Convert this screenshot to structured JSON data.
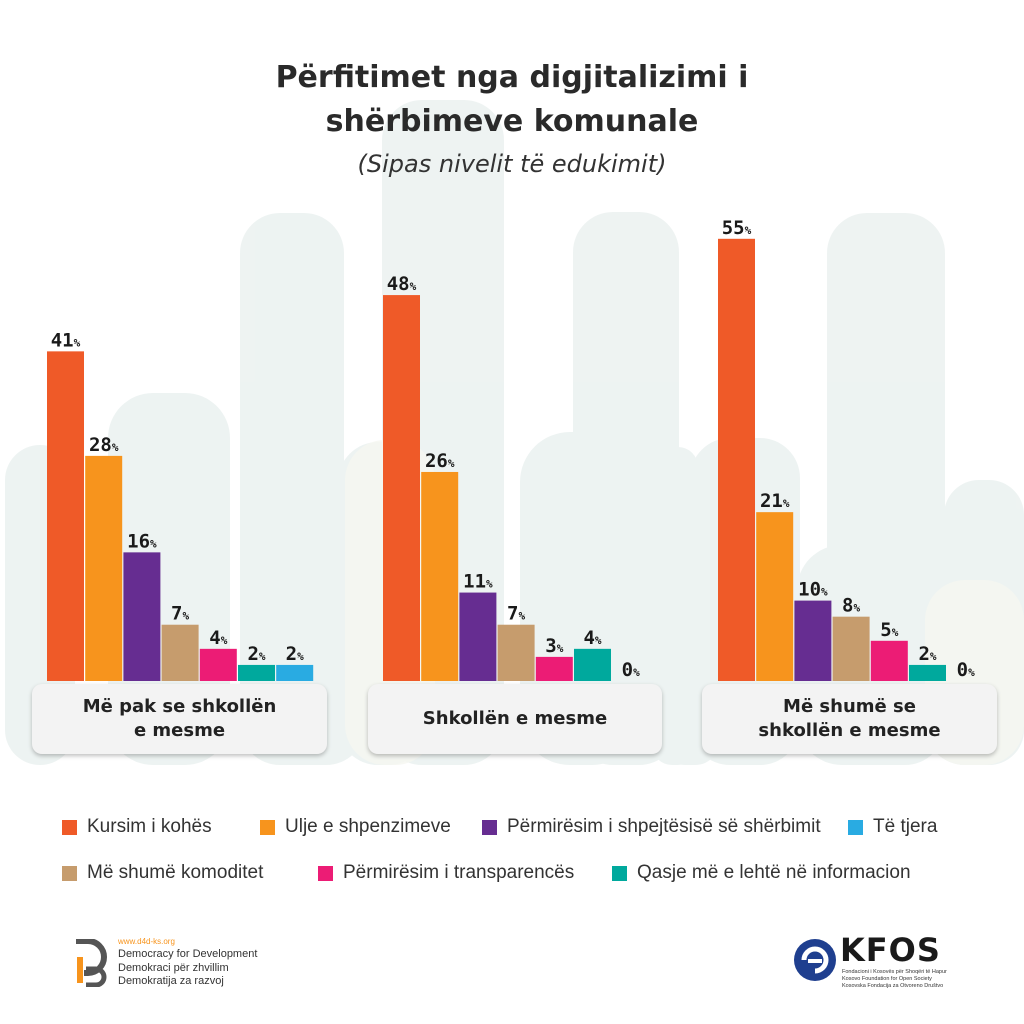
{
  "title_line1": "Përfitimet nga digjitalizimi i",
  "title_line2": "shërbimeve komunale",
  "subtitle": "(Sipas nivelit të edukimit)",
  "chart_data": {
    "type": "bar",
    "title": "Përfitimet nga digjitalizimi i shërbimeve komunale",
    "subtitle": "(Sipas nivelit të edukimit)",
    "categories": [
      "Më pak se shkollën e mesme",
      "Shkollën e mesme",
      "Më shumë se shkollën e mesme"
    ],
    "series": [
      {
        "name": "Kursim i kohës",
        "color": "#ef5a28",
        "values": [
          41,
          48,
          55
        ]
      },
      {
        "name": "Ulje e shpenzimeve",
        "color": "#f7941d",
        "values": [
          28,
          26,
          21
        ]
      },
      {
        "name": "Përmirësim i shpejtësisë së shërbimit",
        "color": "#662d91",
        "values": [
          16,
          11,
          10
        ]
      },
      {
        "name": "Më shumë komoditet",
        "color": "#c69c6d",
        "values": [
          7,
          7,
          8
        ]
      },
      {
        "name": "Përmirësim i transparencës",
        "color": "#ec1c75",
        "values": [
          4,
          3,
          5
        ]
      },
      {
        "name": "Qasje më e lehtë në informacion",
        "color": "#00a99d",
        "values": [
          2,
          4,
          2
        ]
      },
      {
        "name": "Të tjera",
        "color": "#29abe2",
        "values": [
          2,
          0,
          0
        ]
      }
    ],
    "value_suffix": "%",
    "legend_position": "bottom",
    "grid": false
  },
  "groups": [
    {
      "line1": "Më pak se shkollën",
      "line2": "e mesme"
    },
    {
      "line1": "Shkollën e mesme",
      "line2": ""
    },
    {
      "line1": "Më shumë se",
      "line2": "shkollën e mesme"
    }
  ],
  "legend": [
    {
      "label": "Kursim i kohës",
      "color": "#ef5a28"
    },
    {
      "label": "Ulje e shpenzimeve",
      "color": "#f7941d"
    },
    {
      "label": "Përmirësim i shpejtësisë së shërbimit",
      "color": "#662d91"
    },
    {
      "label": "Të tjera",
      "color": "#29abe2"
    },
    {
      "label": "Më shumë komoditet",
      "color": "#c69c6d"
    },
    {
      "label": "Përmirësim i transparencës",
      "color": "#ec1c75"
    },
    {
      "label": "Qasje më e lehtë në informacion",
      "color": "#00a99d"
    }
  ],
  "logos": {
    "d4d_url": "www.d4d-ks.org",
    "d4d_line1": "Democracy for Development",
    "d4d_line2": "Demokraci për zhvillim",
    "d4d_line3": "Demokratija za razvoj",
    "kfos_name": "KFOS",
    "kfos_line1": "Fondacioni i Kosovës për Shoqëri të Hapur",
    "kfos_line2": "Kosovo Foundation for Open Society",
    "kfos_line3": "Kosovska Fondacija za Otvoreno Društvo"
  }
}
